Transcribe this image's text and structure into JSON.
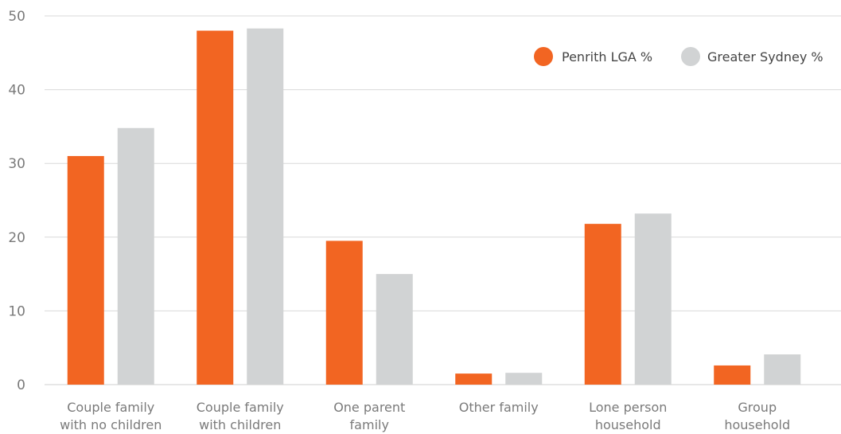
{
  "chart_data": {
    "type": "bar",
    "categories": [
      [
        "Couple family",
        "with no children"
      ],
      [
        "Couple family",
        "with children"
      ],
      [
        "One parent",
        "family"
      ],
      [
        "Other family"
      ],
      [
        "Lone person",
        "household"
      ],
      [
        "Group",
        "household"
      ]
    ],
    "series": [
      {
        "name": "Penrith LGA %",
        "color": "#f26522",
        "values": [
          31.0,
          48.0,
          19.5,
          1.5,
          21.8,
          2.6
        ]
      },
      {
        "name": "Greater Sydney %",
        "color": "#d1d3d4",
        "values": [
          34.8,
          48.3,
          15.0,
          1.6,
          23.2,
          4.1
        ]
      }
    ],
    "yticks": [
      0,
      10,
      20,
      30,
      40,
      50
    ],
    "ylim": [
      0,
      50
    ],
    "grid": true,
    "legend_position": "top-right",
    "title": "",
    "xlabel": "",
    "ylabel": ""
  }
}
